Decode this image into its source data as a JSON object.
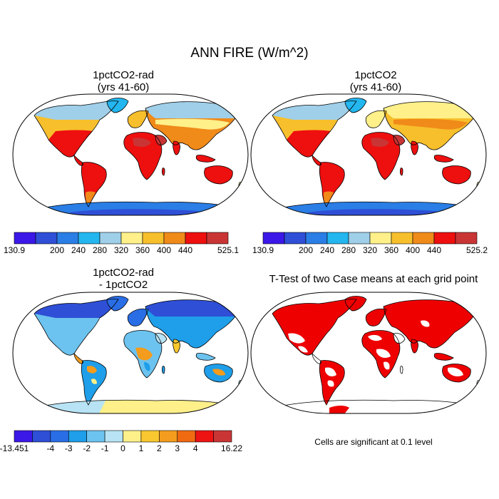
{
  "title": "ANN FIRE (W/m^2)",
  "panels": {
    "top_left": {
      "title_line1": "1pctCO2-rad",
      "title_line2": "(yrs 41-60)"
    },
    "top_right": {
      "title_line1": "1pctCO2",
      "title_line2": "(yrs 41-60)"
    },
    "bottom_left": {
      "title_line1": "1pctCO2-rad",
      "title_line2": "- 1pctCO2"
    },
    "bottom_right": {
      "title": "T-Test of two Case means at each grid point",
      "note": "Cells are significant at 0.1 level"
    }
  },
  "colorbars": {
    "top_left": {
      "colors": [
        "#3c18e8",
        "#2e4fd6",
        "#2a7ee6",
        "#23b6ef",
        "#9fcfe9",
        "#fff08a",
        "#f7bf2c",
        "#f08a19",
        "#ee0f0f",
        "#c93535"
      ],
      "labels": [
        "130.9",
        "200",
        "240",
        "280",
        "320",
        "360",
        "400",
        "440",
        "525.1"
      ]
    },
    "top_right": {
      "colors": [
        "#3c18e8",
        "#2e4fd6",
        "#2a7ee6",
        "#23b6ef",
        "#9fcfe9",
        "#fff08a",
        "#f7bf2c",
        "#f08a19",
        "#ee0f0f",
        "#c93535"
      ],
      "labels": [
        "130.9",
        "200",
        "240",
        "280",
        "320",
        "360",
        "400",
        "440",
        "525.2"
      ]
    },
    "bottom_left": {
      "colors": [
        "#3c18e8",
        "#2e4fd6",
        "#2a6ee6",
        "#1f9ee9",
        "#6cc3ef",
        "#b7e3f4",
        "#fff08a",
        "#f9c72f",
        "#f39c1d",
        "#f06a12",
        "#ee1313",
        "#c93535"
      ],
      "labels": [
        "-13.451",
        "-4",
        "-3",
        "-2",
        "-1",
        "0",
        "1",
        "2",
        "3",
        "4",
        "16.22"
      ]
    }
  },
  "colors": {
    "ocean_bg": "#ffffff",
    "coast": "#000000",
    "significant": "#ee0000"
  }
}
